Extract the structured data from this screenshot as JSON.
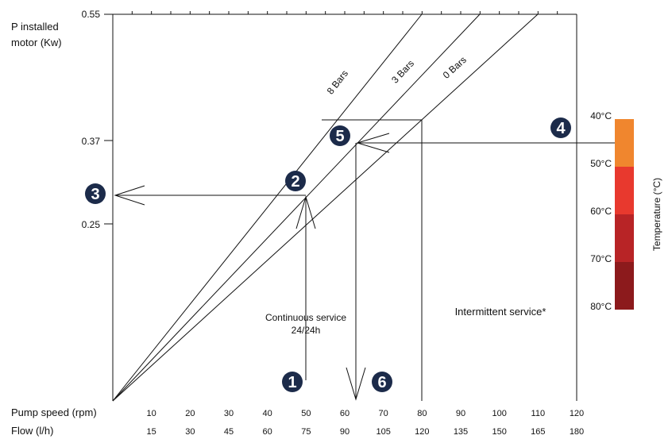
{
  "y_axis": {
    "title_line1": "P installed",
    "title_line2": "motor (Kw)",
    "ticks": [
      "0.55",
      "0.37",
      "0.25"
    ]
  },
  "x_axis": {
    "speed_title": "Pump speed (rpm)",
    "speed_ticks": [
      "10",
      "20",
      "30",
      "40",
      "50",
      "60",
      "70",
      "80",
      "90",
      "100",
      "110",
      "120"
    ],
    "flow_title": "Flow (l/h)",
    "flow_ticks": [
      "15",
      "30",
      "45",
      "60",
      "75",
      "90",
      "105",
      "120",
      "135",
      "150",
      "165",
      "180"
    ]
  },
  "pressure_lines": [
    "8 Bars",
    "3 Bars",
    "0 Bars"
  ],
  "zones": {
    "continuous_line1": "Continuous service",
    "continuous_line2": "24/24h",
    "intermittent": "Intermittent service*"
  },
  "steps": [
    "1",
    "2",
    "3",
    "4",
    "5",
    "6"
  ],
  "temperature": {
    "title": "Temperature (°C)",
    "labels": [
      "40°C",
      "50°C",
      "60°C",
      "70°C",
      "80°C"
    ],
    "colors": [
      "#F0862E",
      "#E8392E",
      "#B82426",
      "#8C1A1C"
    ]
  },
  "chart_data": {
    "type": "line",
    "xlabel": "Pump speed (rpm)",
    "ylabel": "P installed motor (Kw)",
    "xlim": [
      0,
      120
    ],
    "series": [
      {
        "name": "8 Bars",
        "x": [
          0,
          75
        ],
        "y": [
          0,
          0.55
        ]
      },
      {
        "name": "3 Bars",
        "x": [
          0,
          95
        ],
        "y": [
          0,
          0.55
        ]
      },
      {
        "name": "0 Bars",
        "x": [
          0,
          110
        ],
        "y": [
          0,
          0.55
        ]
      }
    ],
    "annotations": [
      "Continuous service 24/24h",
      "Intermittent service*"
    ]
  }
}
